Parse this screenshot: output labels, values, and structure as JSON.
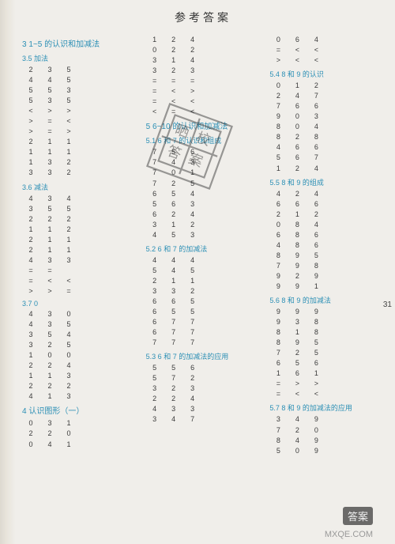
{
  "title": "参考答案",
  "page_number": "31",
  "watermark_site": "MXQE.COM",
  "watermark_badge": "答案",
  "columns": [
    {
      "blocks": [
        {
          "type": "sec",
          "num": "3",
          "label": "1~5 的认识和加减法"
        },
        {
          "type": "sub",
          "label": "3.5 加法"
        },
        {
          "type": "rows",
          "rows": [
            [
              "2",
              "3",
              "5"
            ],
            [
              "4",
              "4",
              "5"
            ],
            [
              "5",
              "5",
              "3"
            ],
            [
              "5",
              "3",
              "5"
            ],
            [
              "<",
              ">",
              ">"
            ],
            [
              ">",
              "=",
              "<"
            ],
            [
              ">",
              "=",
              ">"
            ],
            [
              "2",
              "1",
              "1"
            ],
            [
              "1",
              "1",
              "1"
            ],
            [
              "1",
              "3",
              "2"
            ],
            [
              "3",
              "3",
              "2"
            ]
          ]
        },
        {
          "type": "sub",
          "label": "3.6 减法"
        },
        {
          "type": "rows",
          "rows": [
            [
              "4",
              "3",
              "4"
            ],
            [
              "3",
              "5",
              "5"
            ],
            [
              "2",
              "2",
              "2"
            ],
            [
              "1",
              "1",
              "2"
            ],
            [
              "2",
              "1",
              "1"
            ],
            [
              "2",
              "1",
              "1"
            ],
            [
              "4",
              "3",
              "3"
            ],
            [
              "=",
              "=",
              ""
            ],
            [
              "=",
              "<",
              "<"
            ],
            [
              ">",
              ">",
              "="
            ]
          ]
        },
        {
          "type": "sub",
          "label": "3.7  0"
        },
        {
          "type": "rows",
          "rows": [
            [
              "4",
              "3",
              "0"
            ],
            [
              "4",
              "3",
              "5"
            ],
            [
              "3",
              "5",
              "4"
            ],
            [
              "3",
              "2",
              "5"
            ],
            [
              "1",
              "0",
              "0"
            ],
            [
              "2",
              "2",
              "4"
            ],
            [
              "1",
              "1",
              "3"
            ],
            [
              "2",
              "2",
              "2"
            ],
            [
              "4",
              "1",
              "3"
            ]
          ]
        },
        {
          "type": "sec",
          "num": "4",
          "label": "认识图形（一）"
        },
        {
          "type": "rows",
          "rows": [
            [
              "0",
              "3",
              "1"
            ],
            [
              "2",
              "2",
              "0"
            ],
            [
              "0",
              "4",
              "1"
            ]
          ]
        }
      ]
    },
    {
      "blocks": [
        {
          "type": "rows",
          "rows": [
            [
              "1",
              "2",
              "4"
            ],
            [
              "0",
              "2",
              "2"
            ],
            [
              "3",
              "1",
              "4"
            ],
            [
              "3",
              "2",
              "3"
            ],
            [
              "=",
              "=",
              "="
            ],
            [
              "=",
              "<",
              ">"
            ],
            [
              "=",
              "<",
              "<"
            ],
            [
              "<",
              "=",
              "<"
            ]
          ]
        },
        {
          "type": "sec",
          "num": "5",
          "label": "6~10 的认识和加减法"
        },
        {
          "type": "sub",
          "label": "5.1  6 和 7 的认识和组成"
        },
        {
          "type": "rows",
          "rows": [
            [
              "7",
              "5",
              "6"
            ],
            [
              "7",
              "4",
              "3"
            ],
            [
              "7",
              "0",
              "1"
            ],
            [
              "7",
              "2",
              "5"
            ],
            [
              "6",
              "5",
              "4"
            ],
            [
              "5",
              "6",
              "3"
            ],
            [
              "6",
              "2",
              "4"
            ],
            [
              "3",
              "1",
              "2"
            ],
            [
              "4",
              "5",
              "3"
            ]
          ]
        },
        {
          "type": "sub",
          "label": "5.2  6 和 7 的加减法"
        },
        {
          "type": "rows",
          "rows": [
            [
              "4",
              "4",
              "4"
            ],
            [
              "5",
              "4",
              "5"
            ],
            [
              "2",
              "1",
              "1"
            ],
            [
              "3",
              "3",
              "2"
            ],
            [
              "6",
              "6",
              "5"
            ],
            [
              "6",
              "5",
              "5"
            ],
            [
              "6",
              "7",
              "7"
            ],
            [
              "6",
              "7",
              "7"
            ],
            [
              "7",
              "7",
              "7"
            ]
          ]
        },
        {
          "type": "sub",
          "label": "5.3  6 和 7 的加减法的应用"
        },
        {
          "type": "rows",
          "rows": [
            [
              "5",
              "5",
              "6"
            ],
            [
              "5",
              "7",
              "2"
            ],
            [
              "3",
              "2",
              "3"
            ],
            [
              "2",
              "2",
              "4"
            ],
            [
              "4",
              "3",
              "3"
            ],
            [
              "3",
              "4",
              "7"
            ]
          ]
        }
      ]
    },
    {
      "blocks": [
        {
          "type": "rows",
          "rows": [
            [
              "0",
              "6",
              "4"
            ],
            [
              "=",
              "<",
              "<"
            ],
            [
              ">",
              "<",
              "<"
            ]
          ]
        },
        {
          "type": "sub",
          "label": "5.4  8 和 9 的认识"
        },
        {
          "type": "rows",
          "rows": [
            [
              "0",
              "1",
              "2"
            ],
            [
              "2",
              "4",
              "7"
            ],
            [
              "7",
              "6",
              "6"
            ],
            [
              "9",
              "0",
              "3"
            ],
            [
              "8",
              "0",
              "4"
            ],
            [
              "8",
              "2",
              "8"
            ],
            [
              "4",
              "6",
              "6"
            ],
            [
              "5",
              "6",
              "7"
            ],
            [
              "1",
              "2",
              "4"
            ]
          ]
        },
        {
          "type": "sub",
          "label": "5.5  8 和 9 的组成"
        },
        {
          "type": "rows",
          "rows": [
            [
              "4",
              "2",
              "4"
            ],
            [
              "6",
              "6",
              "6"
            ],
            [
              "2",
              "1",
              "2"
            ],
            [
              "0",
              "8",
              "4"
            ],
            [
              "6",
              "8",
              "6"
            ],
            [
              "4",
              "8",
              "6"
            ],
            [
              "8",
              "9",
              "5"
            ],
            [
              "7",
              "9",
              "8"
            ],
            [
              "9",
              "2",
              "9"
            ],
            [
              "9",
              "9",
              "1"
            ]
          ]
        },
        {
          "type": "sub",
          "label": "5.6  8 和 9 的加减法"
        },
        {
          "type": "rows",
          "rows": [
            [
              "9",
              "9",
              "9"
            ],
            [
              "9",
              "3",
              "8"
            ],
            [
              "8",
              "1",
              "8"
            ],
            [
              "8",
              "9",
              "5"
            ],
            [
              "7",
              "2",
              "5"
            ],
            [
              "6",
              "5",
              "6"
            ],
            [
              "1",
              "6",
              "1"
            ],
            [
              "=",
              ">",
              ">"
            ],
            [
              "=",
              "<",
              "<"
            ]
          ]
        },
        {
          "type": "sub",
          "label": "5.7  8 和 9 的加减法的应用"
        },
        {
          "type": "rows",
          "rows": [
            [
              "3",
              "4",
              "9"
            ],
            [
              "7",
              "2",
              "0"
            ],
            [
              "8",
              "4",
              "9"
            ],
            [
              "5",
              "0",
              "9"
            ]
          ]
        }
      ]
    }
  ]
}
